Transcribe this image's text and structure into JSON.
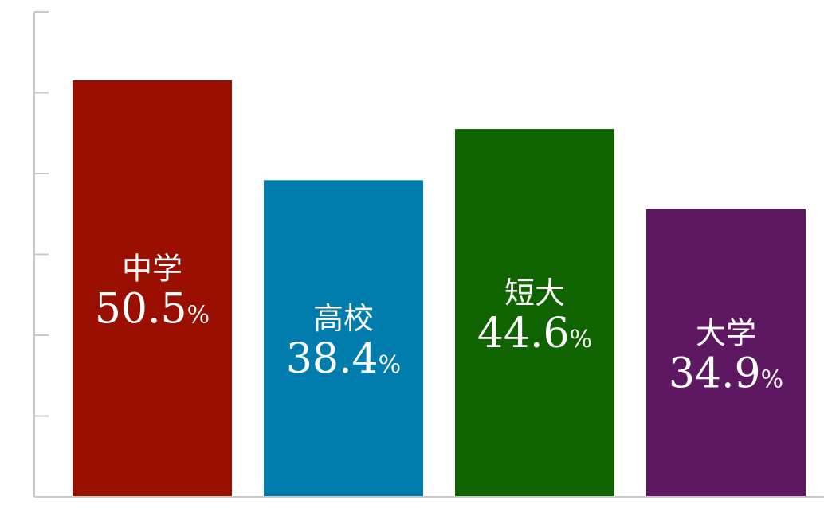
{
  "chart_data": {
    "type": "bar",
    "categories": [
      "中学",
      "高校",
      "短大",
      "大学"
    ],
    "values": [
      50.5,
      38.4,
      44.6,
      34.9
    ],
    "value_labels": [
      "50.5",
      "38.4",
      "44.6",
      "34.9"
    ],
    "unit": "%",
    "colors": [
      "#9b0f00",
      "#007dad",
      "#0f6400",
      "#5e1862"
    ],
    "ylim": [
      0,
      58.8
    ],
    "ytick_count": 6,
    "title": "",
    "xlabel": "",
    "ylabel": "",
    "grid": false,
    "legend": "none"
  }
}
